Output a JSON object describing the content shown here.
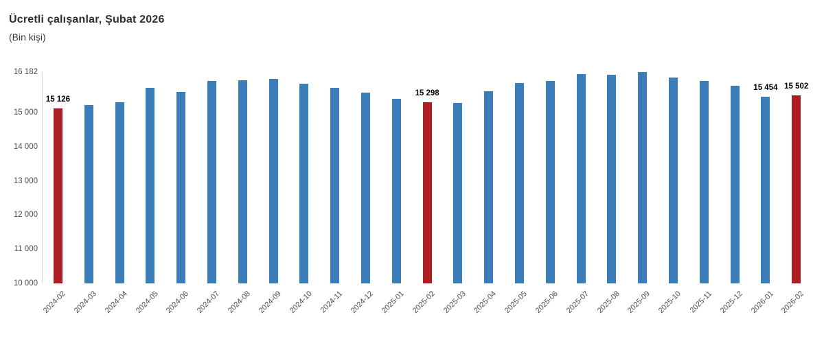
{
  "title": "Ücretli çalışanlar, Şubat 2026",
  "subtitle": "(Bin kişi)",
  "colors": {
    "bar_default": "#3b7db9",
    "bar_highlight": "#ad1e24",
    "axis_line": "#d9d9d9",
    "tick_text": "#4d4d4d",
    "data_label_text": "#000000"
  },
  "chart_data": {
    "type": "bar",
    "title": "Ücretli çalışanlar, Şubat 2026",
    "subtitle": "(Bin kişi)",
    "xlabel": "",
    "ylabel": "Bin kişi",
    "grid": false,
    "legend": false,
    "ylim": [
      10000,
      16182
    ],
    "yticks": [
      {
        "value": 16182,
        "label": "16 182"
      },
      {
        "value": 15000,
        "label": "15 000"
      },
      {
        "value": 14000,
        "label": "14 000"
      },
      {
        "value": 13000,
        "label": "13 000"
      },
      {
        "value": 12000,
        "label": "12 000"
      },
      {
        "value": 11000,
        "label": "11 000"
      },
      {
        "value": 10000,
        "label": "10 000"
      }
    ],
    "categories": [
      "2024-02",
      "2024-03",
      "2024-04",
      "2024-05",
      "2024-06",
      "2024-07",
      "2024-08",
      "2024-09",
      "2024-10",
      "2024-11",
      "2024-12",
      "2025-01",
      "2025-02",
      "2025-03",
      "2025-04",
      "2025-05",
      "2025-06",
      "2025-07",
      "2025-08",
      "2025-09",
      "2025-10",
      "2025-11",
      "2025-12",
      "2026-01",
      "2026-02"
    ],
    "values": [
      15126,
      15225,
      15290,
      15720,
      15600,
      15920,
      15940,
      15985,
      15850,
      15725,
      15575,
      15395,
      15298,
      15285,
      15625,
      15860,
      15930,
      16120,
      16100,
      16182,
      16020,
      15920,
      15785,
      15454,
      15502
    ],
    "highlighted_categories": [
      "2024-02",
      "2025-02",
      "2026-02"
    ],
    "data_labels": [
      {
        "category": "2024-02",
        "text": "15 126"
      },
      {
        "category": "2025-02",
        "text": "15 298"
      },
      {
        "category": "2026-01",
        "text": "15 454"
      },
      {
        "category": "2026-02",
        "text": "15 502"
      }
    ]
  }
}
